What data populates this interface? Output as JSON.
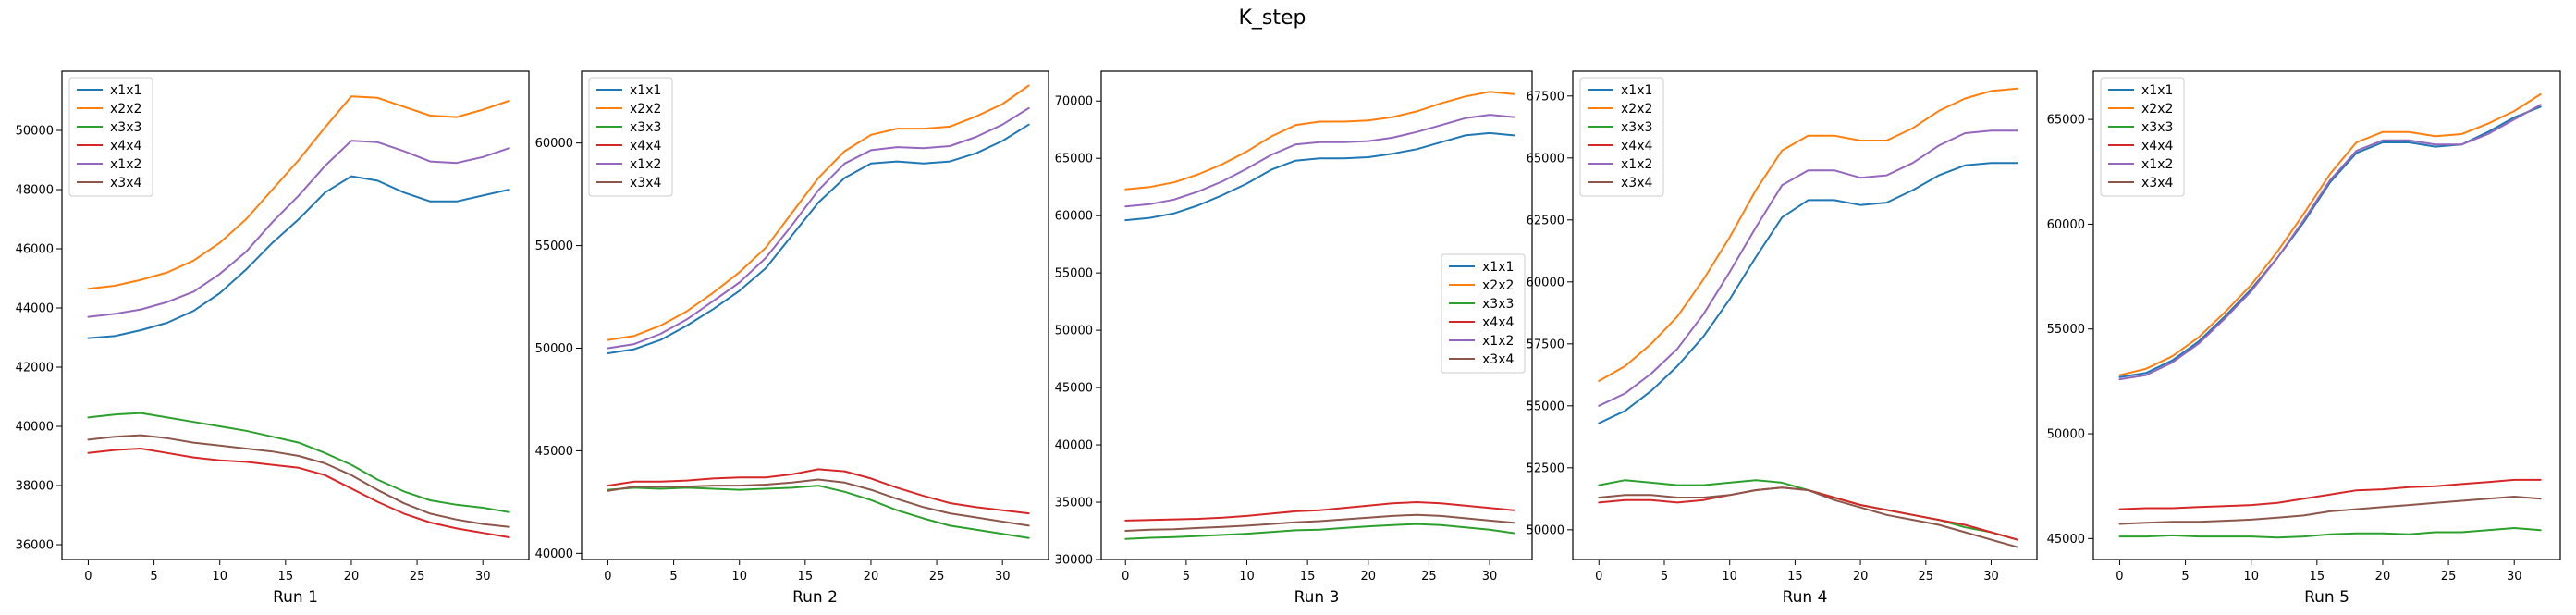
{
  "title": "K_step",
  "colors": {
    "x1x1": "#1f77b4",
    "x2x2": "#ff7f0e",
    "x3x3": "#2ca02c",
    "x4x4": "#d62728",
    "x1x2": "#9467bd",
    "x3x4": "#8c564b"
  },
  "chart_data": [
    {
      "type": "line",
      "xlabel": "Run 1",
      "xlim": [
        -2,
        33.5
      ],
      "ylim": [
        35500,
        52000
      ],
      "xticks": [
        0,
        5,
        10,
        15,
        20,
        25,
        30
      ],
      "yticks": [
        36000,
        38000,
        40000,
        42000,
        44000,
        46000,
        48000,
        50000
      ],
      "legend": "upper-left",
      "x": [
        0,
        2,
        4,
        6,
        8,
        10,
        12,
        14,
        16,
        18,
        20,
        22,
        24,
        26,
        28,
        30,
        32
      ],
      "series": [
        {
          "name": "x1x1",
          "values": [
            42980,
            43050,
            43250,
            43500,
            43900,
            44500,
            45300,
            46200,
            47000,
            47900,
            48450,
            48300,
            47900,
            47600,
            47600,
            47800,
            48000
          ]
        },
        {
          "name": "x2x2",
          "values": [
            44650,
            44750,
            44950,
            45200,
            45600,
            46200,
            47000,
            48000,
            49000,
            50100,
            51150,
            51100,
            50800,
            50500,
            50450,
            50700,
            51000
          ]
        },
        {
          "name": "x3x3",
          "values": [
            40300,
            40400,
            40450,
            40300,
            40150,
            40000,
            39850,
            39650,
            39450,
            39100,
            38700,
            38200,
            37800,
            37500,
            37350,
            37250,
            37100
          ]
        },
        {
          "name": "x4x4",
          "values": [
            39100,
            39200,
            39250,
            39100,
            38950,
            38850,
            38800,
            38700,
            38600,
            38350,
            37900,
            37450,
            37050,
            36750,
            36550,
            36400,
            36250
          ]
        },
        {
          "name": "x1x2",
          "values": [
            43700,
            43800,
            43950,
            44200,
            44550,
            45150,
            45900,
            46900,
            47800,
            48800,
            49650,
            49600,
            49300,
            48950,
            48900,
            49100,
            49400
          ]
        },
        {
          "name": "x3x4",
          "values": [
            39550,
            39650,
            39700,
            39600,
            39450,
            39350,
            39250,
            39150,
            39000,
            38750,
            38350,
            37850,
            37400,
            37050,
            36850,
            36700,
            36600
          ]
        }
      ]
    },
    {
      "type": "line",
      "xlabel": "Run 2",
      "xlim": [
        -2,
        33.5
      ],
      "ylim": [
        39700,
        63500
      ],
      "xticks": [
        0,
        5,
        10,
        15,
        20,
        25,
        30
      ],
      "yticks": [
        40000,
        45000,
        50000,
        55000,
        60000
      ],
      "legend": "upper-left",
      "x": [
        0,
        2,
        4,
        6,
        8,
        10,
        12,
        14,
        16,
        18,
        20,
        22,
        24,
        26,
        28,
        30,
        32
      ],
      "series": [
        {
          "name": "x1x1",
          "values": [
            49750,
            49950,
            50400,
            51100,
            51900,
            52800,
            53900,
            55500,
            57100,
            58300,
            59000,
            59100,
            59000,
            59100,
            59500,
            60100,
            60900
          ]
        },
        {
          "name": "x2x2",
          "values": [
            50400,
            50600,
            51100,
            51800,
            52700,
            53700,
            54900,
            56600,
            58300,
            59600,
            60400,
            60700,
            60700,
            60800,
            61300,
            61900,
            62800
          ]
        },
        {
          "name": "x3x3",
          "values": [
            43100,
            43200,
            43150,
            43200,
            43150,
            43100,
            43150,
            43200,
            43300,
            43000,
            42600,
            42100,
            41700,
            41350,
            41150,
            40950,
            40750
          ]
        },
        {
          "name": "x4x4",
          "values": [
            43300,
            43500,
            43500,
            43550,
            43650,
            43700,
            43700,
            43850,
            44100,
            44000,
            43650,
            43200,
            42800,
            42450,
            42250,
            42100,
            41950
          ]
        },
        {
          "name": "x1x2",
          "values": [
            50000,
            50200,
            50700,
            51400,
            52300,
            53200,
            54400,
            56000,
            57700,
            59000,
            59650,
            59800,
            59750,
            59850,
            60300,
            60900,
            61700
          ]
        },
        {
          "name": "x3x4",
          "values": [
            43050,
            43250,
            43250,
            43250,
            43300,
            43300,
            43350,
            43450,
            43600,
            43450,
            43100,
            42650,
            42250,
            41950,
            41750,
            41550,
            41350
          ]
        }
      ]
    },
    {
      "type": "line",
      "xlabel": "Run 3",
      "xlim": [
        -2,
        33.5
      ],
      "ylim": [
        30000,
        72600
      ],
      "xticks": [
        0,
        5,
        10,
        15,
        20,
        25,
        30
      ],
      "yticks": [
        30000,
        35000,
        40000,
        45000,
        50000,
        55000,
        60000,
        65000,
        70000
      ],
      "legend": "center-right",
      "x": [
        0,
        2,
        4,
        6,
        8,
        10,
        12,
        14,
        16,
        18,
        20,
        22,
        24,
        26,
        28,
        30,
        32
      ],
      "series": [
        {
          "name": "x1x1",
          "values": [
            59600,
            59800,
            60200,
            60900,
            61800,
            62800,
            64000,
            64800,
            65000,
            65000,
            65100,
            65400,
            65800,
            66400,
            67000,
            67200,
            67000
          ]
        },
        {
          "name": "x2x2",
          "values": [
            62300,
            62500,
            62900,
            63600,
            64500,
            65600,
            66900,
            67900,
            68200,
            68200,
            68300,
            68600,
            69100,
            69800,
            70400,
            70800,
            70600
          ]
        },
        {
          "name": "x3x3",
          "values": [
            31800,
            31900,
            31950,
            32050,
            32150,
            32250,
            32400,
            32550,
            32600,
            32750,
            32900,
            33000,
            33100,
            33000,
            32800,
            32600,
            32300
          ]
        },
        {
          "name": "x4x4",
          "values": [
            33400,
            33450,
            33500,
            33550,
            33650,
            33800,
            34000,
            34200,
            34300,
            34500,
            34700,
            34900,
            35000,
            34900,
            34700,
            34500,
            34300
          ]
        },
        {
          "name": "x1x2",
          "values": [
            60800,
            61000,
            61400,
            62100,
            63000,
            64100,
            65300,
            66200,
            66400,
            66400,
            66500,
            66800,
            67300,
            67900,
            68500,
            68800,
            68600
          ]
        },
        {
          "name": "x3x4",
          "values": [
            32500,
            32600,
            32650,
            32750,
            32850,
            32950,
            33100,
            33250,
            33350,
            33500,
            33650,
            33800,
            33900,
            33800,
            33600,
            33400,
            33200
          ]
        }
      ]
    },
    {
      "type": "line",
      "xlabel": "Run 4",
      "xlim": [
        -2,
        33.5
      ],
      "ylim": [
        48800,
        68500
      ],
      "xticks": [
        0,
        5,
        10,
        15,
        20,
        25,
        30
      ],
      "yticks": [
        50000,
        52500,
        55000,
        57500,
        60000,
        62500,
        65000,
        67500
      ],
      "legend": "upper-left",
      "x": [
        0,
        2,
        4,
        6,
        8,
        10,
        12,
        14,
        16,
        18,
        20,
        22,
        24,
        26,
        28,
        30,
        32
      ],
      "series": [
        {
          "name": "x1x1",
          "values": [
            54300,
            54800,
            55600,
            56600,
            57800,
            59300,
            61000,
            62600,
            63300,
            63300,
            63100,
            63200,
            63700,
            64300,
            64700,
            64800,
            64800
          ]
        },
        {
          "name": "x2x2",
          "values": [
            56000,
            56600,
            57500,
            58600,
            60100,
            61800,
            63700,
            65300,
            65900,
            65900,
            65700,
            65700,
            66200,
            66900,
            67400,
            67700,
            67800
          ]
        },
        {
          "name": "x3x3",
          "values": [
            51800,
            52000,
            51900,
            51800,
            51800,
            51900,
            52000,
            51900,
            51600,
            51300,
            51000,
            50800,
            50600,
            50400,
            50100,
            49900,
            49600
          ]
        },
        {
          "name": "x4x4",
          "values": [
            51100,
            51200,
            51200,
            51100,
            51200,
            51400,
            51600,
            51700,
            51600,
            51300,
            51000,
            50800,
            50600,
            50400,
            50200,
            49900,
            49600
          ]
        },
        {
          "name": "x1x2",
          "values": [
            55000,
            55500,
            56300,
            57300,
            58700,
            60400,
            62200,
            63900,
            64500,
            64500,
            64200,
            64300,
            64800,
            65500,
            66000,
            66100,
            66100
          ]
        },
        {
          "name": "x3x4",
          "values": [
            51300,
            51400,
            51400,
            51300,
            51300,
            51400,
            51600,
            51700,
            51600,
            51200,
            50900,
            50600,
            50400,
            50200,
            49900,
            49600,
            49300
          ]
        }
      ]
    },
    {
      "type": "line",
      "xlabel": "Run 5",
      "xlim": [
        -2,
        33.5
      ],
      "ylim": [
        44000,
        67300
      ],
      "xticks": [
        0,
        5,
        10,
        15,
        20,
        25,
        30
      ],
      "yticks": [
        45000,
        50000,
        55000,
        60000,
        65000
      ],
      "legend": "upper-left",
      "x": [
        0,
        2,
        4,
        6,
        8,
        10,
        12,
        14,
        16,
        18,
        20,
        22,
        24,
        26,
        28,
        30,
        32
      ],
      "series": [
        {
          "name": "x1x1",
          "values": [
            52700,
            52900,
            53500,
            54400,
            55600,
            56900,
            58400,
            60100,
            62000,
            63400,
            63900,
            63900,
            63700,
            63800,
            64400,
            65100,
            65600
          ]
        },
        {
          "name": "x2x2",
          "values": [
            52800,
            53100,
            53700,
            54600,
            55800,
            57100,
            58700,
            60500,
            62400,
            63900,
            64400,
            64400,
            64200,
            64300,
            64800,
            65400,
            66200
          ]
        },
        {
          "name": "x3x3",
          "values": [
            45100,
            45100,
            45150,
            45100,
            45100,
            45100,
            45050,
            45100,
            45200,
            45250,
            45250,
            45200,
            45300,
            45300,
            45400,
            45500,
            45400
          ]
        },
        {
          "name": "x4x4",
          "values": [
            46400,
            46450,
            46450,
            46500,
            46550,
            46600,
            46700,
            46900,
            47100,
            47300,
            47350,
            47450,
            47500,
            47600,
            47700,
            47800,
            47800
          ]
        },
        {
          "name": "x1x2",
          "values": [
            52600,
            52800,
            53400,
            54300,
            55500,
            56800,
            58400,
            60200,
            62100,
            63500,
            64000,
            64000,
            63800,
            63800,
            64300,
            65000,
            65700
          ]
        },
        {
          "name": "x3x4",
          "values": [
            45700,
            45750,
            45800,
            45800,
            45850,
            45900,
            46000,
            46100,
            46300,
            46400,
            46500,
            46600,
            46700,
            46800,
            46900,
            47000,
            46900
          ]
        }
      ]
    }
  ]
}
